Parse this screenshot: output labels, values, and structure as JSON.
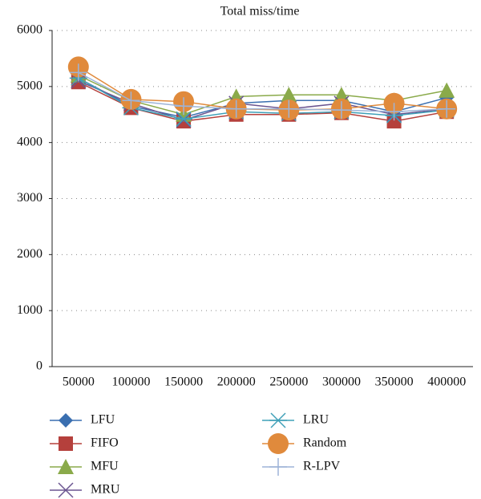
{
  "chart_data": {
    "type": "line",
    "title": "Total miss/time",
    "categories": [
      "50000",
      "100000",
      "150000",
      "200000",
      "250000",
      "300000",
      "350000",
      "400000"
    ],
    "series": [
      {
        "name": "LFU",
        "color": "#3a6fb0",
        "marker": "diamond",
        "values": [
          5150,
          4650,
          4450,
          4700,
          4750,
          4750,
          4550,
          4800
        ]
      },
      {
        "name": "FIFO",
        "color": "#b5403c",
        "marker": "square",
        "values": [
          5080,
          4620,
          4380,
          4500,
          4500,
          4530,
          4380,
          4550
        ]
      },
      {
        "name": "MFU",
        "color": "#8aaa4a",
        "marker": "triangle",
        "values": [
          5200,
          4750,
          4500,
          4820,
          4850,
          4850,
          4750,
          4930
        ]
      },
      {
        "name": "MRU",
        "color": "#6b5590",
        "marker": "x",
        "values": [
          5100,
          4700,
          4400,
          4700,
          4600,
          4700,
          4500,
          4600
        ]
      },
      {
        "name": "LRU",
        "color": "#3fa0b8",
        "marker": "star",
        "values": [
          5150,
          4620,
          4420,
          4550,
          4520,
          4550,
          4480,
          4580
        ]
      },
      {
        "name": "Random",
        "color": "#e08a3c",
        "marker": "circle",
        "values": [
          5350,
          4770,
          4730,
          4600,
          4580,
          4600,
          4700,
          4600
        ]
      },
      {
        "name": "R-LPV",
        "color": "#9db4d8",
        "marker": "plus",
        "values": [
          5250,
          4750,
          4650,
          4600,
          4600,
          4580,
          4550,
          4600
        ]
      }
    ],
    "ylim": [
      0,
      6000
    ],
    "yticks": [
      0,
      1000,
      2000,
      3000,
      4000,
      5000,
      6000
    ],
    "grid": true
  }
}
